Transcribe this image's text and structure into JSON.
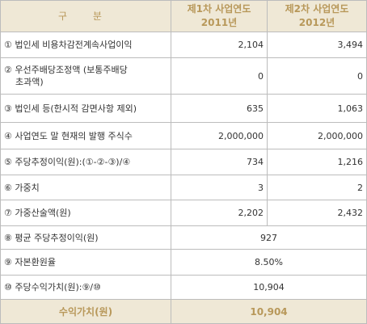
{
  "header": {
    "gubun": "구 분",
    "col1_line1": "제1차 사업연도",
    "col1_line2": "2011년",
    "col2_line1": "제2차 사업연도",
    "col2_line2": "2012년"
  },
  "rows": [
    {
      "label": "① 법인세 비용차감전계속사업이익",
      "v1": "2,104",
      "v2": "3,494"
    },
    {
      "label_line1": "② 우선주배당조정액 (보통주배당",
      "label_line2": "초과액)",
      "v1": "0",
      "v2": "0"
    },
    {
      "label": "③ 법인세 등(한시적 감면사항 제외)",
      "v1": "635",
      "v2": "1,063"
    },
    {
      "label": "④ 사업연도 말 현재의 발행 주식수",
      "v1": "2,000,000",
      "v2": "2,000,000"
    },
    {
      "label": "⑤ 주당추정이익(원):(①-②-③)/④",
      "v1": "734",
      "v2": "1,216"
    },
    {
      "label": "⑥ 가중치",
      "v1": "3",
      "v2": "2"
    },
    {
      "label": "⑦ 가중산술액(원)",
      "v1": "2,202",
      "v2": "2,432"
    },
    {
      "label": "⑧ 평균 주당추정이익(원)",
      "merged": "927"
    },
    {
      "label": "⑨ 자본환원율",
      "merged": "8.50%"
    },
    {
      "label": "⑩ 주당수익가치(원):⑨/⑩",
      "merged": "10,904"
    }
  ],
  "total": {
    "label": "수익가치(원)",
    "value": "10,904"
  },
  "colors": {
    "header_bg": "#efe8d6",
    "header_text": "#b8985a",
    "border": "#bcbcbc"
  }
}
